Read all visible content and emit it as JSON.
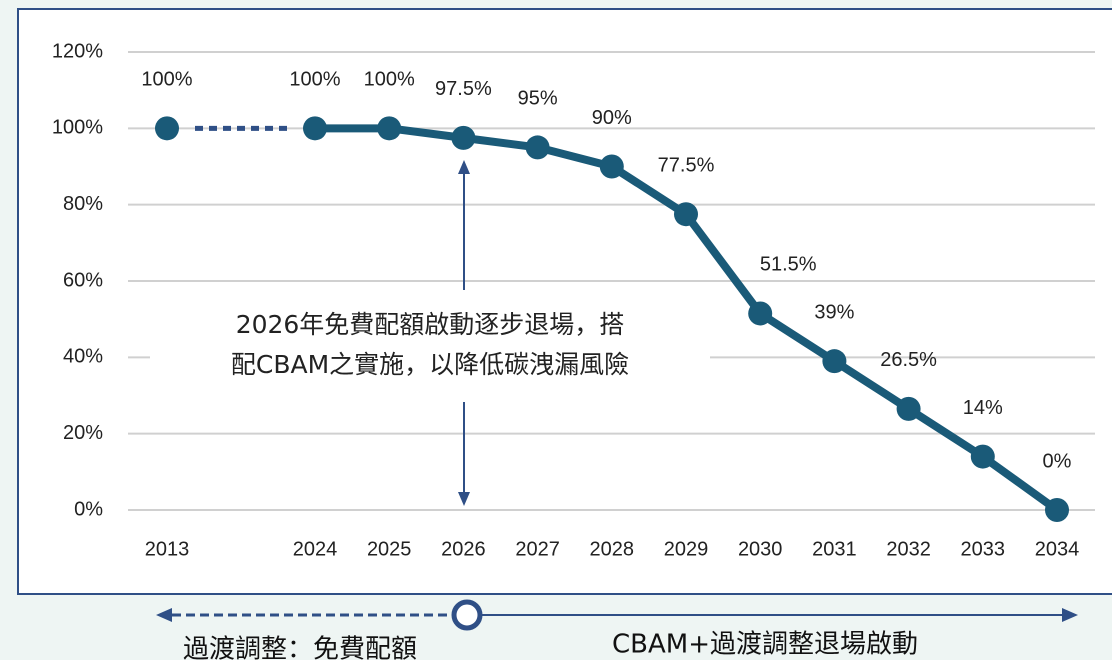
{
  "chart_data": {
    "type": "line",
    "categories": [
      "2013",
      "2024",
      "2025",
      "2026",
      "2027",
      "2028",
      "2029",
      "2030",
      "2031",
      "2032",
      "2033",
      "2034"
    ],
    "values": [
      100,
      100,
      100,
      97.5,
      95,
      90,
      77.5,
      51.5,
      39,
      26.5,
      14,
      0
    ],
    "value_labels": [
      "100%",
      "100%",
      "100%",
      "97.5%",
      "95%",
      "90%",
      "77.5%",
      "51.5%",
      "39%",
      "26.5%",
      "14%",
      "0%"
    ],
    "color": "#1a5a78",
    "ylim": [
      0,
      120
    ],
    "yticks": [
      {
        "value": 0,
        "label": "0%"
      },
      {
        "value": 20,
        "label": "20%"
      },
      {
        "value": 40,
        "label": "40%"
      },
      {
        "value": 60,
        "label": "60%"
      },
      {
        "value": 80,
        "label": "80%"
      },
      {
        "value": 100,
        "label": "100%"
      },
      {
        "value": 120,
        "label": "120%"
      }
    ],
    "grid": true,
    "annotation": [
      "2026年免費配額啟動逐步退場，搭",
      "配CBAM之實施，以降低碳洩漏風險"
    ],
    "timeline": {
      "left": "過渡調整：免費配額",
      "right": "CBAM+過渡調整退場啟動"
    }
  }
}
